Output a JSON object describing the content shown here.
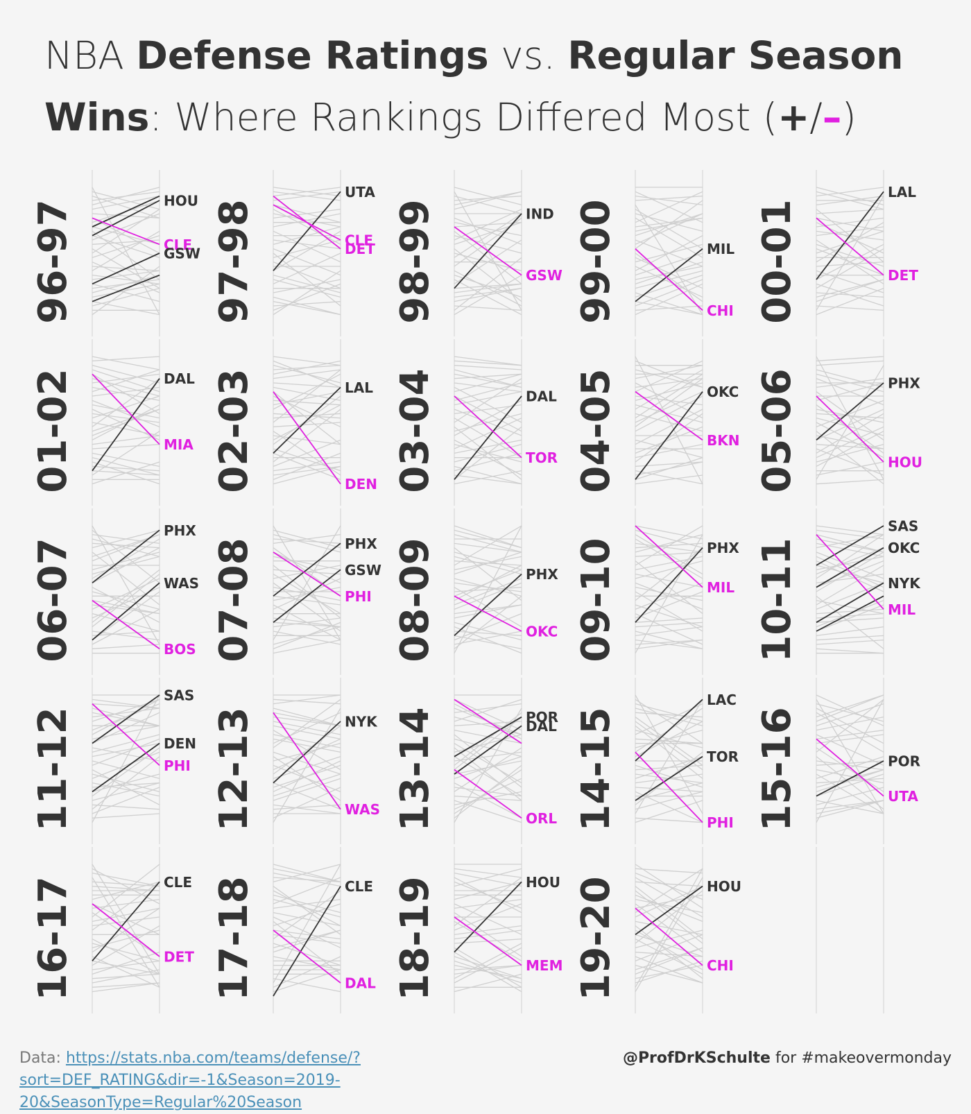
{
  "title": {
    "p1": "NBA ",
    "p2": "Defense Ratings",
    "p3": " vs. ",
    "p4": "Regular Season",
    "p5": "Wins",
    "p6": ": Where Rankings Differed Most (",
    "p7": "+",
    "p8": "/",
    "p9": "–",
    "p10": ")"
  },
  "footer": {
    "data_label": "Data: ",
    "link_text": "https://stats.nba.com/teams/defense/?sort=DEF_RATING&dir=-1&Season=2019-20&SeasonType=Regular%20Season",
    "credit_handle": "@ProfDrKSchulte",
    "credit_rest": " for #makeovermonday"
  },
  "colors": {
    "positive": "#333333",
    "negative": "#e020e0",
    "background_line": "#cfcfcf",
    "text": "#333333"
  },
  "chart_data": {
    "type": "slope",
    "n_ranks": 30,
    "seasons": [
      {
        "season": "96-97",
        "highlights": [
          {
            "team": "HOU",
            "left": 11,
            "right": 3,
            "kind": "positive"
          },
          {
            "team": "HOU",
            "left": 9,
            "right": 2,
            "kind": "positive"
          },
          {
            "team": "CLE",
            "left": 7,
            "right": 13,
            "kind": "negative"
          },
          {
            "team": "GSW",
            "left": 22,
            "right": 15,
            "kind": "positive"
          },
          {
            "team": "GSW",
            "left": 26,
            "right": 20,
            "kind": "positive"
          }
        ]
      },
      {
        "season": "97-98",
        "highlights": [
          {
            "team": "UTA",
            "left": 19,
            "right": 1,
            "kind": "positive"
          },
          {
            "team": "CLE",
            "left": 4,
            "right": 12,
            "kind": "negative"
          },
          {
            "team": "DET",
            "left": 2,
            "right": 14,
            "kind": "negative"
          }
        ]
      },
      {
        "season": "98-99",
        "highlights": [
          {
            "team": "IND",
            "left": 23,
            "right": 6,
            "kind": "positive"
          },
          {
            "team": "GSW",
            "left": 9,
            "right": 20,
            "kind": "negative"
          }
        ]
      },
      {
        "season": "99-00",
        "highlights": [
          {
            "team": "MIL",
            "left": 26,
            "right": 14,
            "kind": "positive"
          },
          {
            "team": "CHI",
            "left": 14,
            "right": 28,
            "kind": "negative"
          }
        ]
      },
      {
        "season": "00-01",
        "highlights": [
          {
            "team": "LAL",
            "left": 21,
            "right": 1,
            "kind": "positive"
          },
          {
            "team": "DET",
            "left": 7,
            "right": 20,
            "kind": "negative"
          }
        ]
      },
      {
        "season": "01-02",
        "highlights": [
          {
            "team": "DAL",
            "left": 26,
            "right": 5,
            "kind": "positive"
          },
          {
            "team": "MIA",
            "left": 4,
            "right": 20,
            "kind": "negative"
          }
        ]
      },
      {
        "season": "02-03",
        "highlights": [
          {
            "team": "LAL",
            "left": 22,
            "right": 7,
            "kind": "positive"
          },
          {
            "team": "DEN",
            "left": 8,
            "right": 29,
            "kind": "negative"
          }
        ]
      },
      {
        "season": "03-04",
        "highlights": [
          {
            "team": "DAL",
            "left": 28,
            "right": 9,
            "kind": "positive"
          },
          {
            "team": "TOR",
            "left": 9,
            "right": 23,
            "kind": "negative"
          }
        ]
      },
      {
        "season": "04-05",
        "highlights": [
          {
            "team": "OKC",
            "left": 28,
            "right": 8,
            "kind": "positive"
          },
          {
            "team": "BKN",
            "left": 8,
            "right": 19,
            "kind": "negative"
          }
        ]
      },
      {
        "season": "05-06",
        "highlights": [
          {
            "team": "PHX",
            "left": 19,
            "right": 6,
            "kind": "positive"
          },
          {
            "team": "HOU",
            "left": 9,
            "right": 24,
            "kind": "negative"
          }
        ]
      },
      {
        "season": "06-07",
        "highlights": [
          {
            "team": "PHX",
            "left": 13,
            "right": 1,
            "kind": "positive"
          },
          {
            "team": "WAS",
            "left": 26,
            "right": 13,
            "kind": "positive"
          },
          {
            "team": "BOS",
            "left": 17,
            "right": 28,
            "kind": "negative"
          }
        ]
      },
      {
        "season": "07-08",
        "highlights": [
          {
            "team": "PHX",
            "left": 16,
            "right": 4,
            "kind": "positive"
          },
          {
            "team": "GSW",
            "left": 22,
            "right": 10,
            "kind": "positive"
          },
          {
            "team": "PHI",
            "left": 6,
            "right": 16,
            "kind": "negative"
          }
        ]
      },
      {
        "season": "08-09",
        "highlights": [
          {
            "team": "PHX",
            "left": 25,
            "right": 11,
            "kind": "positive"
          },
          {
            "team": "OKC",
            "left": 16,
            "right": 24,
            "kind": "negative"
          }
        ]
      },
      {
        "season": "09-10",
        "highlights": [
          {
            "team": "PHX",
            "left": 22,
            "right": 5,
            "kind": "positive"
          },
          {
            "team": "MIL",
            "left": 0,
            "right": 14,
            "kind": "negative"
          }
        ]
      },
      {
        "season": "10-11",
        "highlights": [
          {
            "team": "SAS",
            "left": 9,
            "right": 0,
            "kind": "positive"
          },
          {
            "team": "OKC",
            "left": 14,
            "right": 5,
            "kind": "positive"
          },
          {
            "team": "NYK",
            "left": 22,
            "right": 13,
            "kind": "positive"
          },
          {
            "team": "NYK",
            "left": 24,
            "right": 16,
            "kind": "positive"
          },
          {
            "team": "MIL",
            "left": 2,
            "right": 19,
            "kind": "negative"
          }
        ]
      },
      {
        "season": "11-12",
        "highlights": [
          {
            "team": "SAS",
            "left": 11,
            "right": 0,
            "kind": "positive"
          },
          {
            "team": "DEN",
            "left": 22,
            "right": 11,
            "kind": "positive"
          },
          {
            "team": "PHI",
            "left": 2,
            "right": 16,
            "kind": "negative"
          }
        ]
      },
      {
        "season": "12-13",
        "highlights": [
          {
            "team": "NYK",
            "left": 20,
            "right": 6,
            "kind": "positive"
          },
          {
            "team": "WAS",
            "left": 4,
            "right": 26,
            "kind": "negative"
          }
        ]
      },
      {
        "season": "13-14",
        "highlights": [
          {
            "team": "POR",
            "left": 14,
            "right": 5,
            "kind": "positive"
          },
          {
            "team": "DAL",
            "left": 18,
            "right": 7,
            "kind": "positive"
          },
          {
            "team": "ORL",
            "left": 17,
            "right": 28,
            "kind": "negative"
          },
          {
            "team": "ORL",
            "left": 1,
            "right": 11,
            "kind": "negative"
          }
        ]
      },
      {
        "season": "14-15",
        "highlights": [
          {
            "team": "LAC",
            "left": 15,
            "right": 1,
            "kind": "positive"
          },
          {
            "team": "TOR",
            "left": 24,
            "right": 14,
            "kind": "positive"
          },
          {
            "team": "PHI",
            "left": 13,
            "right": 29,
            "kind": "negative"
          }
        ]
      },
      {
        "season": "15-16",
        "highlights": [
          {
            "team": "POR",
            "left": 23,
            "right": 15,
            "kind": "positive"
          },
          {
            "team": "UTA",
            "left": 10,
            "right": 23,
            "kind": "negative"
          }
        ]
      },
      {
        "season": "16-17",
        "highlights": [
          {
            "team": "CLE",
            "left": 22,
            "right": 4,
            "kind": "positive"
          },
          {
            "team": "DET",
            "left": 9,
            "right": 21,
            "kind": "negative"
          }
        ]
      },
      {
        "season": "17-18",
        "highlights": [
          {
            "team": "CLE",
            "left": 30,
            "right": 5,
            "kind": "positive"
          },
          {
            "team": "DAL",
            "left": 15,
            "right": 27,
            "kind": "negative"
          }
        ]
      },
      {
        "season": "18-19",
        "highlights": [
          {
            "team": "HOU",
            "left": 20,
            "right": 4,
            "kind": "positive"
          },
          {
            "team": "MEM",
            "left": 12,
            "right": 23,
            "kind": "negative"
          }
        ]
      },
      {
        "season": "19-20",
        "highlights": [
          {
            "team": "HOU",
            "left": 16,
            "right": 5,
            "kind": "positive"
          },
          {
            "team": "CHI",
            "left": 10,
            "right": 23,
            "kind": "negative"
          }
        ]
      }
    ]
  }
}
